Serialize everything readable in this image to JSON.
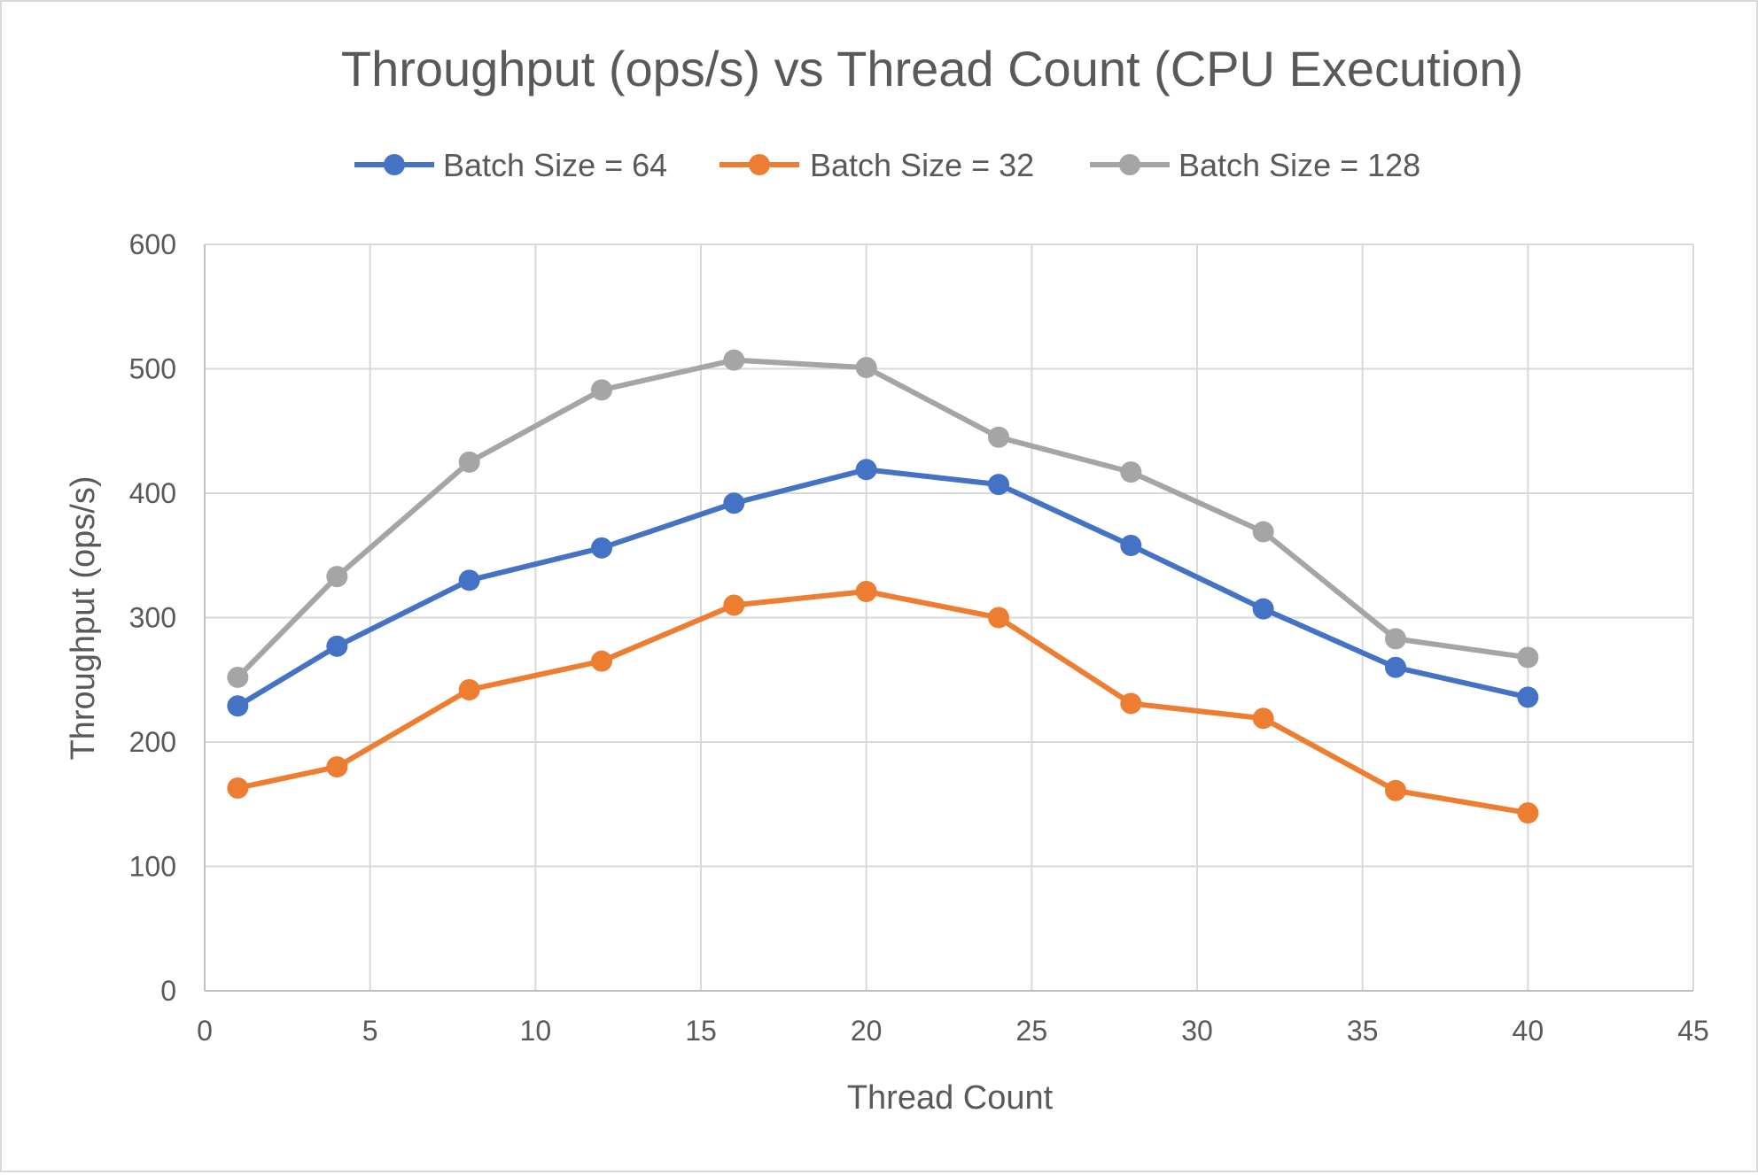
{
  "chart_data": {
    "type": "scatter",
    "title": "Throughput (ops/s) vs Thread Count (CPU Execution)",
    "xlabel": "Thread Count",
    "ylabel": "Throughput (ops/s)",
    "xlim": [
      0,
      45
    ],
    "ylim": [
      0,
      600
    ],
    "x_ticks": [
      0,
      5,
      10,
      15,
      20,
      25,
      30,
      35,
      40,
      45
    ],
    "y_ticks": [
      0,
      100,
      200,
      300,
      400,
      500,
      600
    ],
    "x_tick_labels": [
      "0",
      "5",
      "10",
      "15",
      "20",
      "25",
      "30",
      "35",
      "40",
      "45"
    ],
    "y_tick_labels": [
      "0",
      "100",
      "200",
      "300",
      "400",
      "500",
      "600"
    ],
    "grid": true,
    "legend_position": "top",
    "x": [
      1,
      4,
      8,
      12,
      16,
      20,
      24,
      28,
      32,
      36,
      40
    ],
    "series": [
      {
        "name": "Batch Size = 64",
        "color": "#4472C4",
        "values": [
          229,
          277,
          330,
          356,
          392,
          419,
          407,
          358,
          307,
          260,
          236
        ]
      },
      {
        "name": "Batch Size = 32",
        "color": "#ED7D31",
        "values": [
          163,
          180,
          242,
          265,
          310,
          321,
          300,
          231,
          219,
          161,
          143
        ]
      },
      {
        "name": "Batch Size = 128",
        "color": "#A5A5A5",
        "values": [
          252,
          333,
          425,
          483,
          507,
          501,
          445,
          417,
          369,
          283,
          268
        ]
      }
    ]
  }
}
